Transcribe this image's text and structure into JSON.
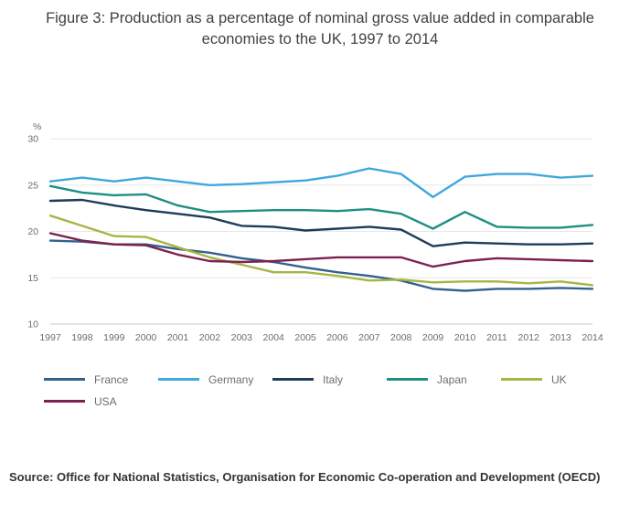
{
  "title": {
    "text": "Figure 3: Production as a percentage of nominal gross value added in comparable economies to the UK, 1997 to 2014"
  },
  "source": {
    "text": "Source: Office for National Statistics, Organisation for Economic Co-operation and Development (OECD)"
  },
  "chart_data": {
    "type": "line",
    "title": "Figure 3: Production as a percentage of nominal gross value added in comparable economies to the UK, 1997 to 2014",
    "unit_label": "%",
    "xlabel": "",
    "ylabel": "%",
    "ylim": [
      10,
      30
    ],
    "yticks": [
      10,
      15,
      20,
      25,
      30
    ],
    "grid": true,
    "legend_position": "bottom",
    "x": [
      1997,
      1998,
      1999,
      2000,
      2001,
      2002,
      2003,
      2004,
      2005,
      2006,
      2007,
      2008,
      2009,
      2010,
      2011,
      2012,
      2013,
      2014
    ],
    "series": [
      {
        "name": "France",
        "color": "#33618d",
        "values": [
          19.0,
          18.9,
          18.6,
          18.6,
          18.1,
          17.7,
          17.1,
          16.7,
          16.1,
          15.6,
          15.2,
          14.7,
          13.8,
          13.6,
          13.8,
          13.8,
          13.9,
          13.8
        ]
      },
      {
        "name": "Germany",
        "color": "#3fa8dc",
        "values": [
          25.4,
          25.8,
          25.4,
          25.8,
          25.4,
          25.0,
          25.1,
          25.3,
          25.5,
          26.0,
          26.8,
          26.2,
          23.7,
          25.9,
          26.2,
          26.2,
          25.8,
          26.0
        ]
      },
      {
        "name": "Italy",
        "color": "#1e3c5a",
        "values": [
          23.3,
          23.4,
          22.8,
          22.3,
          21.9,
          21.5,
          20.6,
          20.5,
          20.1,
          20.3,
          20.5,
          20.2,
          18.4,
          18.8,
          18.7,
          18.6,
          18.6,
          18.7
        ]
      },
      {
        "name": "Japan",
        "color": "#1e8f82",
        "values": [
          24.9,
          24.2,
          23.9,
          24.0,
          22.8,
          22.1,
          22.2,
          22.3,
          22.3,
          22.2,
          22.4,
          21.9,
          20.3,
          22.1,
          20.5,
          20.4,
          20.4,
          20.7
        ]
      },
      {
        "name": "UK",
        "color": "#a8b545",
        "values": [
          21.7,
          20.6,
          19.5,
          19.4,
          18.3,
          17.2,
          16.4,
          15.6,
          15.6,
          15.2,
          14.7,
          14.8,
          14.5,
          14.6,
          14.6,
          14.4,
          14.6,
          14.2
        ]
      },
      {
        "name": "USA",
        "color": "#7d2150",
        "values": [
          19.8,
          19.0,
          18.6,
          18.5,
          17.5,
          16.8,
          16.7,
          16.8,
          17.0,
          17.2,
          17.2,
          17.2,
          16.2,
          16.8,
          17.1,
          17.0,
          16.9,
          16.8
        ]
      }
    ]
  }
}
